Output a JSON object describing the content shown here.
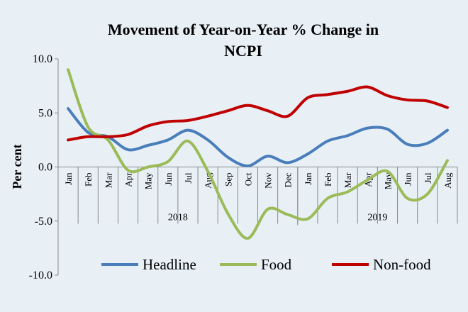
{
  "chart_data": {
    "type": "line",
    "title": "Movement of Year-on-Year % Change in NCPI",
    "title_lines": [
      "Movement of Year-on-Year % Change in",
      "NCPI"
    ],
    "xlabel": "",
    "ylabel": "Per cent",
    "ylim": [
      -10,
      10
    ],
    "yticks": [
      10,
      5,
      0,
      -5,
      -10
    ],
    "ytick_labels": [
      "10.0",
      "5.0",
      "0.0",
      "-5.0",
      "-10.0"
    ],
    "categories": [
      "Jan",
      "Feb",
      "Mar",
      "Apr",
      "May",
      "Jun",
      "Jul",
      "Aug",
      "Sep",
      "Oct",
      "Nov",
      "Dec",
      "Jan",
      "Feb",
      "Mar",
      "Apr",
      "May",
      "Jun",
      "Jul",
      "Aug"
    ],
    "year_groups": [
      {
        "label": "2018",
        "start": 0,
        "end": 11
      },
      {
        "label": "2019",
        "start": 12,
        "end": 19
      }
    ],
    "legend_position": "bottom",
    "grid": false,
    "series": [
      {
        "name": "Headline",
        "color": "#4a7ebb",
        "values": [
          5.4,
          3.2,
          2.8,
          1.6,
          2.0,
          2.5,
          3.4,
          2.5,
          0.9,
          0.1,
          1.0,
          0.4,
          1.2,
          2.4,
          2.9,
          3.6,
          3.5,
          2.1,
          2.2,
          3.4
        ]
      },
      {
        "name": "Food",
        "color": "#9bbb59",
        "values": [
          9.0,
          3.7,
          2.5,
          -0.3,
          0.0,
          0.5,
          2.4,
          -0.4,
          -4.3,
          -6.6,
          -3.9,
          -4.4,
          -4.8,
          -2.9,
          -2.3,
          -1.2,
          -0.4,
          -2.9,
          -2.5,
          0.6
        ]
      },
      {
        "name": "Non-food",
        "color": "#c00000",
        "values": [
          2.5,
          2.8,
          2.8,
          3.0,
          3.8,
          4.2,
          4.3,
          4.7,
          5.2,
          5.7,
          5.2,
          4.7,
          6.4,
          6.7,
          7.0,
          7.4,
          6.6,
          6.2,
          6.1,
          5.5
        ]
      }
    ]
  }
}
